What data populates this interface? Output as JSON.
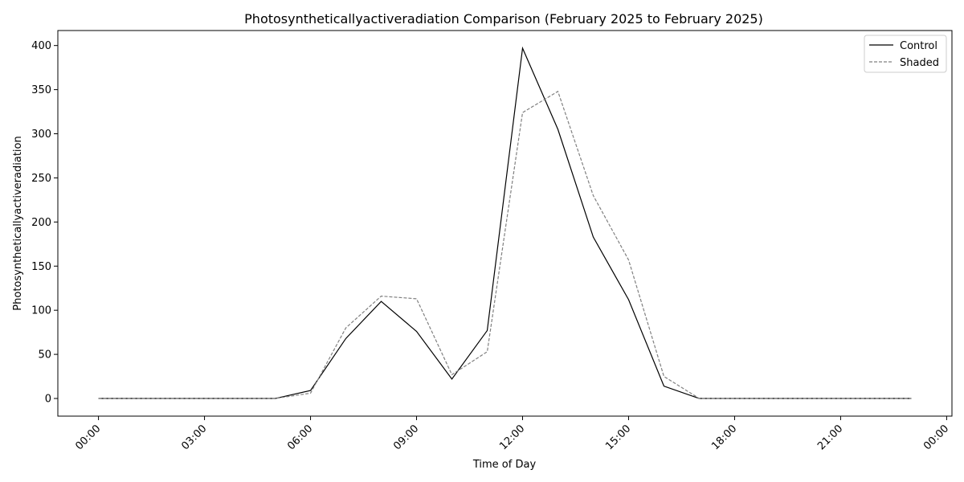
{
  "chart_data": {
    "type": "line",
    "title": "Photosyntheticallyactiveradiation Comparison (February 2025 to February 2025)",
    "xlabel": "Time of Day",
    "ylabel": "Photosyntheticallyactiveradiation",
    "x_unit": "hours",
    "x": [
      0,
      1,
      2,
      3,
      4,
      5,
      6,
      7,
      8,
      9,
      10,
      11,
      12,
      13,
      14,
      15,
      16,
      17,
      18,
      19,
      20,
      21,
      22,
      23
    ],
    "xlim": [
      -1.15,
      24.15
    ],
    "ylim": [
      -20,
      417
    ],
    "x_ticks": [
      0,
      3,
      6,
      9,
      12,
      15,
      18,
      21,
      24
    ],
    "x_tick_labels": [
      "00:00",
      "03:00",
      "06:00",
      "09:00",
      "12:00",
      "15:00",
      "18:00",
      "21:00",
      "00:00"
    ],
    "y_ticks": [
      0,
      50,
      100,
      150,
      200,
      250,
      300,
      350,
      400
    ],
    "y_tick_labels": [
      "0",
      "50",
      "100",
      "150",
      "200",
      "250",
      "300",
      "350",
      "400"
    ],
    "grid": false,
    "legend_position": "top-right",
    "series": [
      {
        "name": "Control",
        "color": "#000000",
        "style": "solid",
        "values": [
          0,
          0,
          0,
          0,
          0,
          0,
          9,
          68,
          110,
          76,
          22,
          77,
          397,
          305,
          183,
          112,
          14,
          0,
          0,
          0,
          0,
          0,
          0,
          0
        ]
      },
      {
        "name": "Shaded",
        "color": "#808080",
        "style": "dashed",
        "values": [
          0,
          0,
          0,
          0,
          0,
          0,
          6,
          80,
          116,
          113,
          27,
          53,
          324,
          348,
          230,
          157,
          25,
          0,
          0,
          0,
          0,
          0,
          0,
          0
        ]
      }
    ]
  }
}
